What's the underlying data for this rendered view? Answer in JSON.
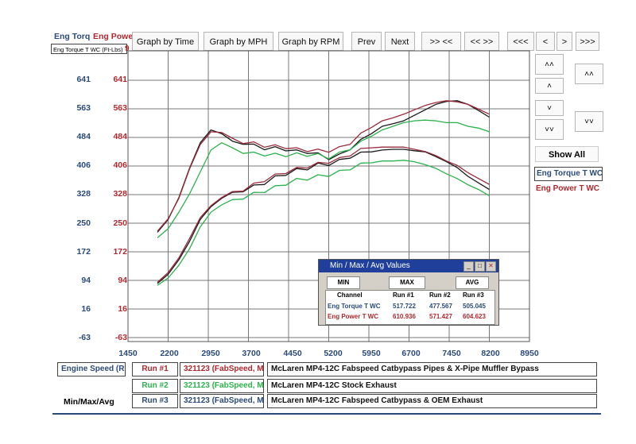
{
  "header": {
    "tab_torque": "Eng Torq",
    "tab_power": "Eng Powe",
    "channel_select": "Eng Torque T WC (Ft-Lbs)",
    "power_fragment": "9"
  },
  "toolbar": {
    "graph_time": "Graph by Time",
    "graph_mph": "Graph by MPH",
    "graph_rpm": "Graph by RPM",
    "prev": "Prev",
    "next": "Next",
    "zoom_in": ">> <<",
    "zoom_out": "<< >>",
    "far_left": "<<<",
    "left": "<",
    "right": ">",
    "far_right": ">>>"
  },
  "side_controls": {
    "up_fast": "˄˄",
    "down_fast": "˅˅",
    "up": "˄",
    "down": "˅",
    "up_fast_2": "˄˄",
    "down_fast_2": "˅˅",
    "show_all": "Show All"
  },
  "legend_right": {
    "torque": "Eng Torque T WC",
    "power": "Eng Power T WC"
  },
  "chart_data": {
    "type": "line",
    "x": [
      2000,
      2200,
      2400,
      2600,
      2800,
      3000,
      3200,
      3400,
      3600,
      3800,
      4000,
      4200,
      4400,
      4600,
      4800,
      5000,
      5200,
      5400,
      5600,
      5800,
      6000,
      6200,
      6400,
      6600,
      6800,
      7000,
      7200,
      7400,
      7600,
      7800,
      8000,
      8200
    ],
    "xticks": [
      "1450",
      "2200",
      "2950",
      "3700",
      "4450",
      "5200",
      "5950",
      "6700",
      "7450",
      "8200",
      "8950"
    ],
    "xlim": [
      1450,
      8950
    ],
    "yticks_left": [
      "641",
      "563",
      "484",
      "406",
      "328",
      "250",
      "172",
      "94",
      "16",
      "-63"
    ],
    "yticks_right": [
      "641",
      "563",
      "484",
      "406",
      "328",
      "250",
      "172",
      "94",
      "16",
      "-63"
    ],
    "ylim": [
      -63,
      641
    ],
    "colors": {
      "run1": "#1a1a1a",
      "run2": "#2bb24c",
      "run3": "#9a2a3a",
      "axis_blue": "#2a4a7a",
      "axis_red": "#b0282e"
    },
    "series": [
      {
        "name": "Run #1 Torque",
        "values": [
          225,
          260,
          320,
          400,
          470,
          505,
          495,
          470,
          470,
          462,
          455,
          455,
          452,
          446,
          445,
          438,
          428,
          435,
          455,
          475,
          495,
          515,
          522,
          530,
          545,
          560,
          575,
          583,
          585,
          575,
          558,
          540
        ]
      },
      {
        "name": "Run #3 Torque",
        "values": [
          228,
          262,
          318,
          398,
          465,
          500,
          498,
          478,
          472,
          468,
          462,
          460,
          458,
          452,
          450,
          448,
          448,
          455,
          470,
          492,
          512,
          530,
          538,
          548,
          560,
          572,
          580,
          585,
          582,
          575,
          562,
          548
        ]
      },
      {
        "name": "Run #2 Torque",
        "values": [
          210,
          235,
          280,
          330,
          390,
          450,
          470,
          452,
          445,
          440,
          438,
          437,
          436,
          438,
          437,
          436,
          430,
          440,
          455,
          470,
          488,
          505,
          515,
          525,
          530,
          532,
          530,
          525,
          525,
          515,
          510,
          500
        ]
      },
      {
        "name": "Run #1 Power",
        "values": [
          85,
          110,
          150,
          200,
          260,
          295,
          318,
          330,
          340,
          350,
          360,
          375,
          385,
          395,
          400,
          410,
          412,
          420,
          432,
          440,
          445,
          450,
          452,
          452,
          448,
          445,
          432,
          418,
          402,
          378,
          360,
          342
        ]
      },
      {
        "name": "Run #3 Power",
        "values": [
          88,
          115,
          155,
          208,
          265,
          298,
          320,
          332,
          342,
          355,
          368,
          380,
          390,
          398,
          405,
          412,
          418,
          425,
          438,
          450,
          456,
          458,
          458,
          458,
          452,
          446,
          435,
          420,
          408,
          388,
          372,
          356
        ]
      },
      {
        "name": "Run #2 Power",
        "values": [
          80,
          100,
          135,
          180,
          240,
          280,
          300,
          310,
          320,
          330,
          338,
          348,
          358,
          368,
          372,
          378,
          382,
          390,
          400,
          410,
          415,
          420,
          420,
          422,
          418,
          410,
          400,
          385,
          372,
          355,
          342,
          325
        ]
      }
    ]
  },
  "dialog": {
    "title": "Min / Max / Avg Values",
    "min_label": "MIN",
    "max_label": "MAX",
    "avg_label": "AVG",
    "col_channel": "Channel",
    "col_run1": "Run #1",
    "col_run2": "Run #2",
    "col_run3": "Run #3",
    "row1_name": "Eng Torque T WC",
    "row1_run1": "517.722",
    "row1_run2": "477.567",
    "row1_run3": "505.045",
    "row2_name": "Eng Power T WC",
    "row2_run1": "610.936",
    "row2_run2": "571.427",
    "row2_run3": "604.623"
  },
  "bottom": {
    "engine_speed": "Engine Speed (Rl",
    "run1_label": "Run #1",
    "run2_label": "Run #2",
    "run3_label": "Run #3",
    "run1_id": "321123 (FabSpeed, M",
    "run2_id": "321123 (FabSpeed, M",
    "run3_id": "321123 (FabSpeed, M",
    "run1_desc": "McLaren MP4-12C Fabspeed Catbypass Pipes & X-Pipe Muffler Bypass",
    "run2_desc": "McLaren MP4-12C Stock Exhaust",
    "run3_desc": "McLaren MP4-12C Fabspeed Catbypass & OEM Exhaust",
    "minmaxavg": "Min/Max/Avg"
  }
}
